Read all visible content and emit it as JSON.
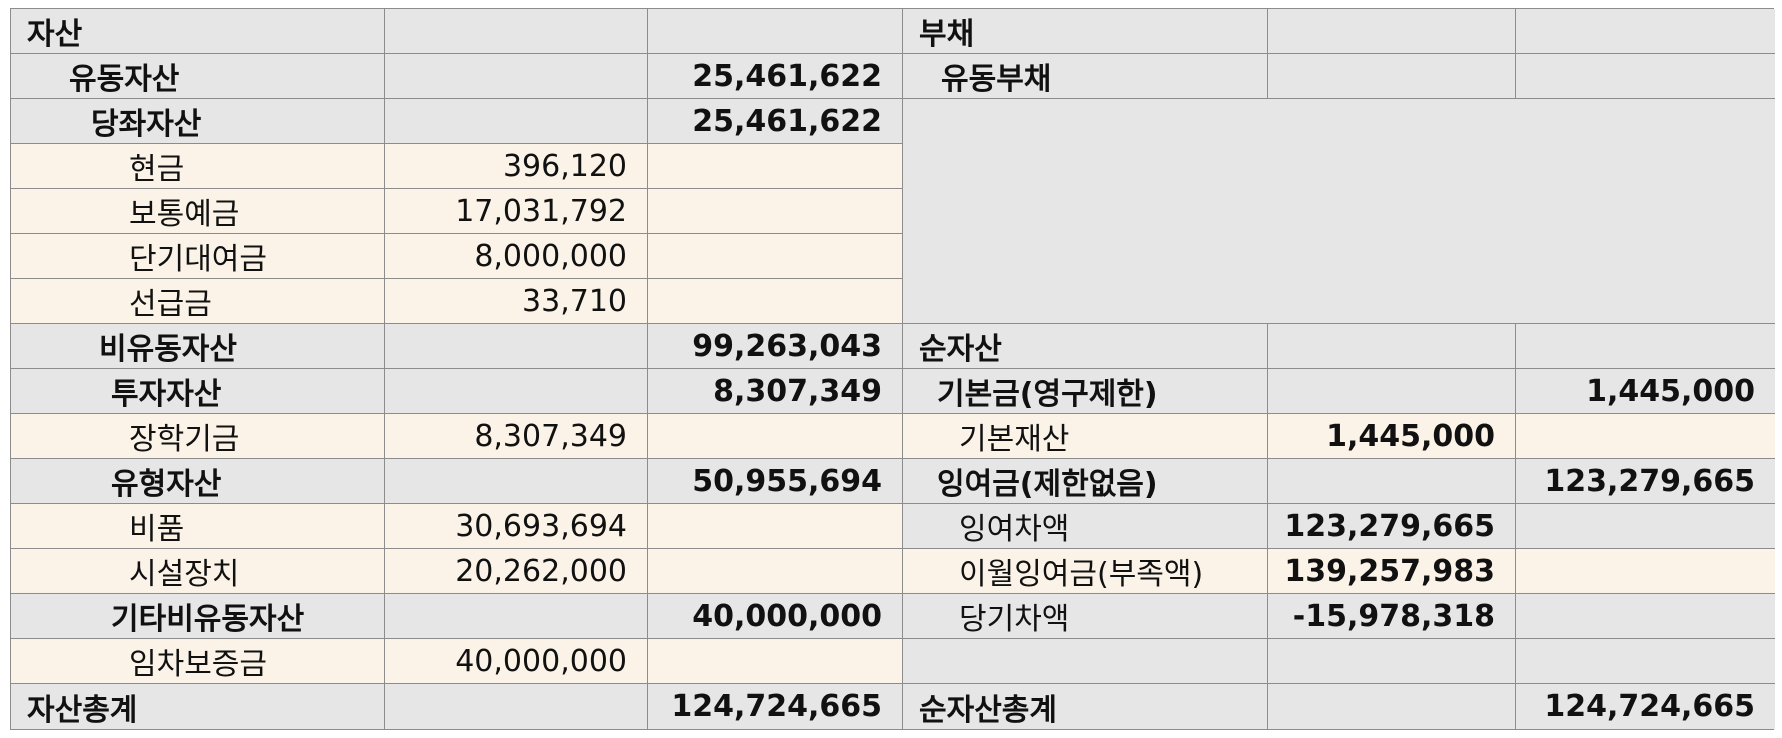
{
  "assets": {
    "header": "자산",
    "current_assets": {
      "label": "유동자산",
      "total": "25,461,622"
    },
    "quick_assets": {
      "label": "당좌자산",
      "total": "25,461,622"
    },
    "cash": {
      "label": "현금",
      "value": "396,120"
    },
    "deposits": {
      "label": "보통예금",
      "value": "17,031,792"
    },
    "short_loans": {
      "label": "단기대여금",
      "value": "8,000,000"
    },
    "prepayments": {
      "label": "선급금",
      "value": "33,710"
    },
    "noncurrent_assets": {
      "label": "비유동자산",
      "total": "99,263,043"
    },
    "investment_assets": {
      "label": "투자자산",
      "total": "8,307,349"
    },
    "scholarship_fund": {
      "label": "장학기금",
      "value": "8,307,349"
    },
    "tangible_assets": {
      "label": "유형자산",
      "total": "50,955,694"
    },
    "supplies": {
      "label": "비품",
      "value": "30,693,694"
    },
    "facilities": {
      "label": "시설장치",
      "value": "20,262,000"
    },
    "other_noncurrent": {
      "label": "기타비유동자산",
      "total": "40,000,000"
    },
    "lease_deposit": {
      "label": "임차보증금",
      "value": "40,000,000"
    },
    "total": {
      "label": "자산총계",
      "value": "124,724,665"
    }
  },
  "liabilities": {
    "header": "부채",
    "current_liabilities": {
      "label": "유동부채"
    }
  },
  "net_assets": {
    "header": "순자산",
    "endowment": {
      "label": "기본금(영구제한)",
      "total": "1,445,000"
    },
    "basic_property": {
      "label": "기본재산",
      "value": "1,445,000"
    },
    "surplus": {
      "label": "잉여금(제한없음)",
      "total": "123,279,665"
    },
    "surplus_diff": {
      "label": "잉여차액",
      "value": "123,279,665"
    },
    "carried_surplus": {
      "label": "이월잉여금(부족액)",
      "value": "139,257,983"
    },
    "current_diff": {
      "label": "당기차액",
      "value": "-15,978,318"
    },
    "total": {
      "label": "순자산총계",
      "value": "124,724,665"
    }
  }
}
